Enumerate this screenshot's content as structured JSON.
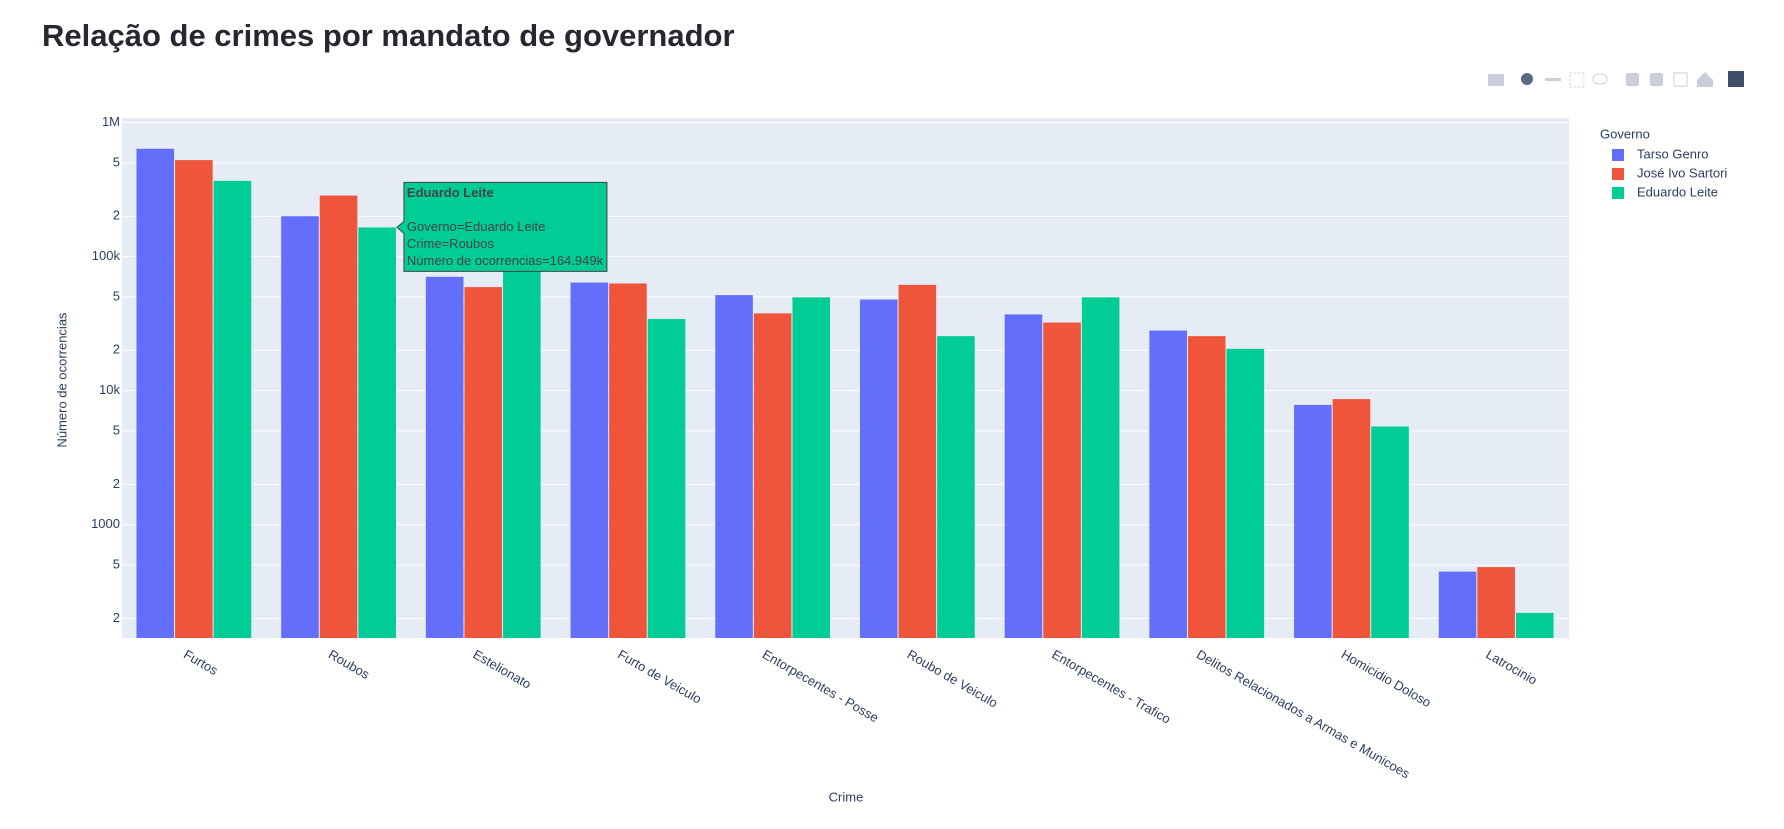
{
  "chart_data": {
    "type": "bar",
    "title": "Relação de crimes por mandato de governador",
    "x_label": "Crime",
    "y_label": "Número de ocorrencias",
    "legend_title": "Governo",
    "legend_position": "right",
    "log_y": true,
    "grid": true,
    "categories": [
      "Furtos",
      "Roubos",
      "Estelionato",
      "Furto de Veiculo",
      "Entorpecentes - Posse",
      "Roubo de Veiculo",
      "Entorpecentes - Trafico",
      "Delitos Relacionados a Armas e Municoes",
      "Homicidio Doloso",
      "Latrocinio"
    ],
    "series": [
      {
        "name": "Tarso Genro",
        "color": "#636efa",
        "values": [
          637000,
          200000,
          70600,
          64000,
          51600,
          47800,
          37000,
          28100,
          7830,
          447
        ]
      },
      {
        "name": "José Ivo Sartori",
        "color": "#ef553b",
        "values": [
          524000,
          285000,
          59200,
          63000,
          37700,
          61500,
          32200,
          25500,
          8650,
          483
        ]
      },
      {
        "name": "Eduardo Leite",
        "color": "#00cc96",
        "values": [
          367000,
          164949,
          90000,
          34200,
          49700,
          25500,
          49700,
          20500,
          5400,
          220
        ]
      }
    ],
    "ylim": [
      143,
      1080000
    ],
    "yticks": [
      {
        "value": 200,
        "label": "2"
      },
      {
        "value": 500,
        "label": "5"
      },
      1000,
      {
        "value": 2000,
        "label": "2"
      },
      {
        "value": 5000,
        "label": "5"
      },
      {
        "value": 10000,
        "label": "10k"
      },
      {
        "value": 20000,
        "label": "2"
      },
      {
        "value": 50000,
        "label": "5"
      },
      {
        "value": 100000,
        "label": "100k"
      },
      {
        "value": 200000,
        "label": "2"
      },
      {
        "value": 500000,
        "label": "5"
      },
      {
        "value": 1000000,
        "label": "1M"
      }
    ],
    "tooltip": {
      "series": 2,
      "category": 1,
      "title": "Eduardo Leite",
      "lines": [
        "Governo=Eduardo Leite",
        "Crime=Roubos",
        "Número de ocorrencias=164.949k"
      ]
    }
  }
}
